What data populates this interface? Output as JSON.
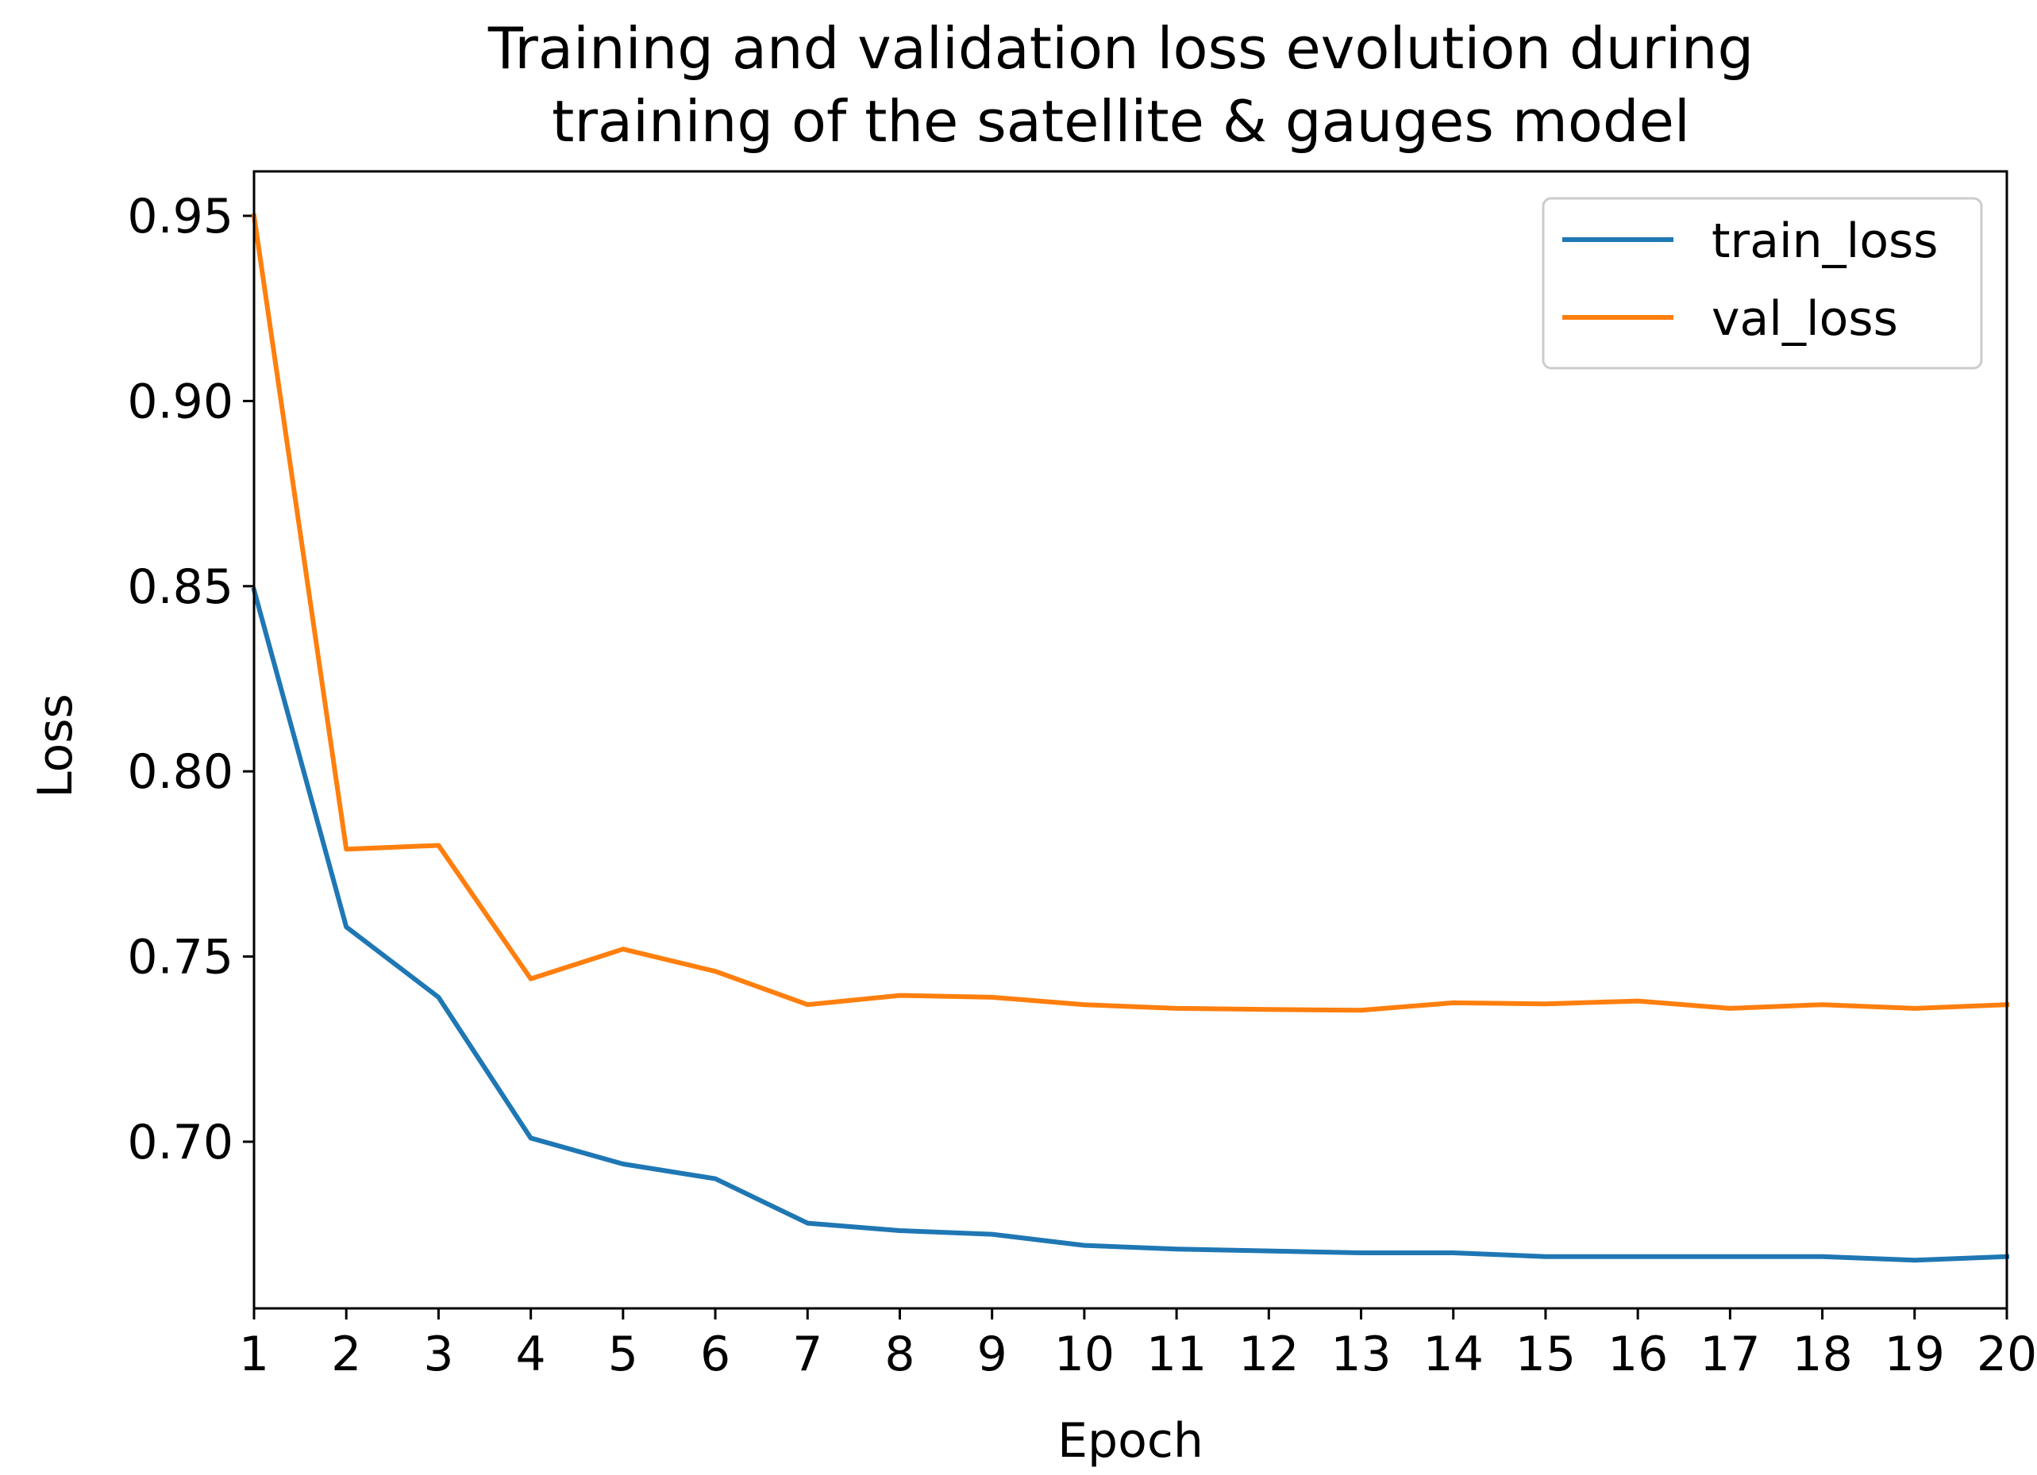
{
  "chart_data": {
    "type": "line",
    "title_line1": "Training and validation loss evolution during",
    "title_line2": "training of the satellite & gauges model",
    "xlabel": "Epoch",
    "ylabel": "Loss",
    "x": [
      1,
      2,
      3,
      4,
      5,
      6,
      7,
      8,
      9,
      10,
      11,
      12,
      13,
      14,
      15,
      16,
      17,
      18,
      19,
      20
    ],
    "xlim": [
      1,
      20
    ],
    "ylim": [
      0.655,
      0.962
    ],
    "yticks": [
      0.7,
      0.75,
      0.8,
      0.85,
      0.9,
      0.95
    ],
    "ytick_labels": [
      "0.70",
      "0.75",
      "0.80",
      "0.85",
      "0.90",
      "0.95"
    ],
    "xtick_labels": [
      "1",
      "2",
      "3",
      "4",
      "5",
      "6",
      "7",
      "8",
      "9",
      "10",
      "11",
      "12",
      "13",
      "14",
      "15",
      "16",
      "17",
      "18",
      "19",
      "20"
    ],
    "legend_position": "top-right",
    "series": [
      {
        "name": "train_loss",
        "color": "#1f77b4",
        "values": [
          0.849,
          0.758,
          0.739,
          0.701,
          0.694,
          0.69,
          0.678,
          0.676,
          0.675,
          0.672,
          0.671,
          0.6705,
          0.67,
          0.67,
          0.669,
          0.669,
          0.669,
          0.669,
          0.668,
          0.669
        ]
      },
      {
        "name": "val_loss",
        "color": "#ff7f0e",
        "values": [
          0.95,
          0.779,
          0.78,
          0.744,
          0.752,
          0.746,
          0.737,
          0.7395,
          0.739,
          0.737,
          0.736,
          0.7357,
          0.7355,
          0.7375,
          0.7372,
          0.738,
          0.736,
          0.737,
          0.736,
          0.737
        ]
      }
    ]
  }
}
